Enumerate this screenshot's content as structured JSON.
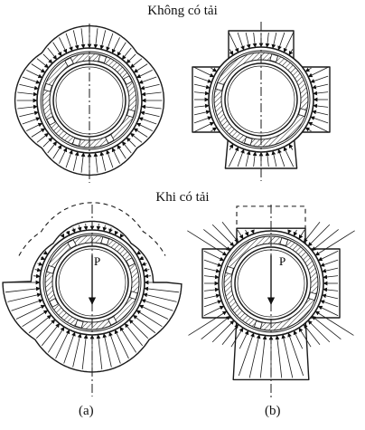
{
  "titles": {
    "unloaded": "Không có tải",
    "loaded": "Khi có tải"
  },
  "labels": {
    "case_a": "(a)",
    "case_b": "(b)",
    "force": "P"
  },
  "colors": {
    "ink": "#1a1a1a",
    "hatch": "#2a2a2a"
  }
}
